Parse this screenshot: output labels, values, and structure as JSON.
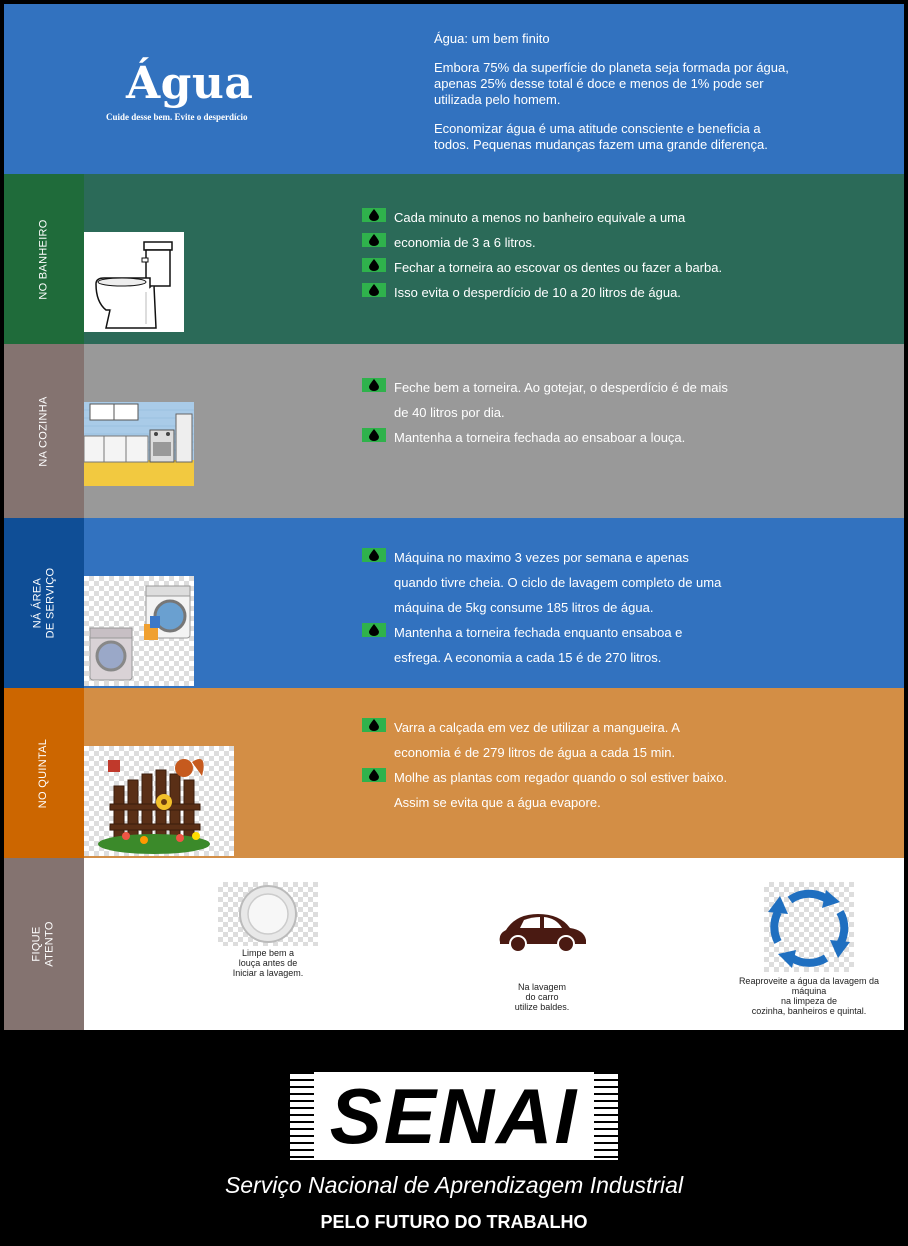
{
  "header": {
    "title": "Água",
    "subtitle": "Cuide desse bem. Evite o desperdício",
    "intro_heading": "Água: um bem finito",
    "intro_p1": "Embora 75% da superfície do planeta seja formada por água, apenas 25% desse total é doce e menos de 1% pode ser utilizada pelo homem.",
    "intro_p2": "Economizar água é uma atitude consciente e beneficia a todos. Pequenas mudanças fazem uma grande diferença."
  },
  "sections": [
    {
      "label": "NO BANHEIRO",
      "color_side": "#1f6b3a",
      "color_bg": "#2b6a58",
      "tips": [
        "Cada minuto a menos no banheiro equivale a uma",
        "economia de 3 a 6 litros.",
        "Fechar a torneira ao escovar os dentes ou fazer a barba.",
        "Isso evita o desperdício de 10 a 20 litros de água."
      ]
    },
    {
      "label": "NA COZINHA",
      "color_side": "#847370",
      "color_bg": "#999999",
      "tips": [
        "Feche bem a torneira. Ao gotejar, o desperdício é de mais de 40 litros por dia.",
        "Mantenha a torneira fechada ao ensaboar a louça."
      ]
    },
    {
      "label": "NÁ ÁREA\nDE SERVIÇO",
      "color_side": "#0f4e96",
      "color_bg": "#3272bf",
      "tips": [
        "Máquina no maximo 3 vezes por semana e apenas quando tivre cheia. O ciclo de lavagem completo de uma máquina de 5kg consume 185 litros de água.",
        "Mantenha a torneira fechada enquanto ensaboa e esfrega. A economia a cada 15 é de 270 litros."
      ]
    },
    {
      "label": "NO QUINTAL",
      "color_side": "#cc6600",
      "color_bg": "#d38e45",
      "tips": [
        "Varra a calçada em vez de utilizar a mangueira. A economia é de 279 litros de água a cada 15 min.",
        "Molhe as plantas com regador quando o sol estiver baixo. Assim se evita que a água evapore."
      ]
    }
  ],
  "atento": {
    "label": "FIQUE\nATENTO",
    "color_side": "#847370",
    "items": [
      {
        "text": "Limpe bem a\nlouça antes de\nIniciar a lavagem.",
        "icon": "plate-icon"
      },
      {
        "text": "Na lavagem\ndo carro\nutilize baldes.",
        "icon": "car-icon"
      },
      {
        "text": "Reaproveite a água da lavagem da\nmáquina\nna limpeza de\ncozinha, banheiros e quintal.",
        "icon": "recycle-arrows-icon"
      }
    ]
  },
  "footer": {
    "brand": "SENAI",
    "name": "Serviço Nacional de Aprendizagem Industrial",
    "motto": "PELO FUTURO DO TRABALHO"
  }
}
